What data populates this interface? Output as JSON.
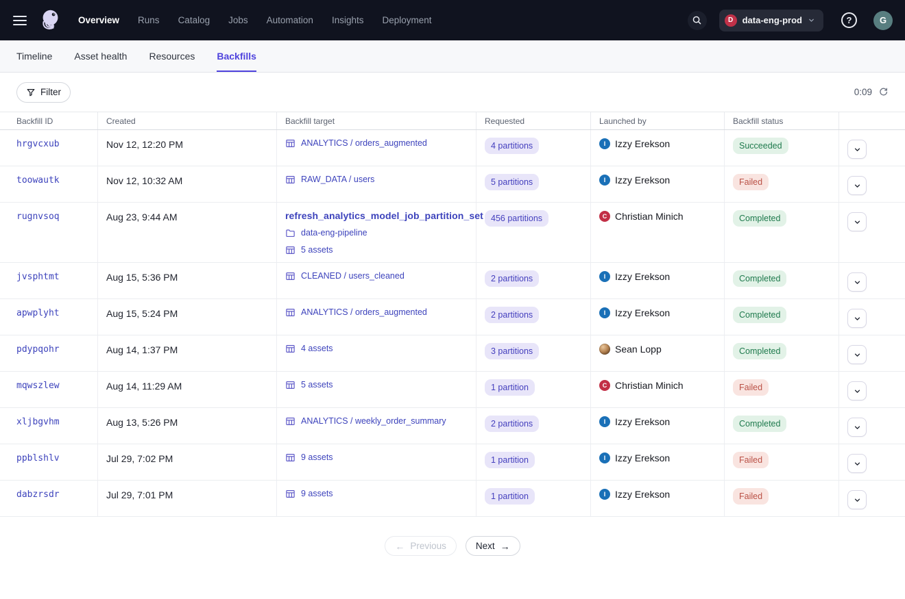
{
  "colors": {
    "accent": "#4f43dd",
    "link": "#3d43bc",
    "pillBg": "#e8e5f9",
    "pillText": "#4540be",
    "okBg": "#e2f2e7",
    "okText": "#1f7a4d",
    "failBg": "#f9e4e0",
    "failText": "#ba5146",
    "topbar": "#10131f"
  },
  "topnav": {
    "items": [
      {
        "label": "Overview",
        "active": true
      },
      {
        "label": "Runs",
        "active": false
      },
      {
        "label": "Catalog",
        "active": false
      },
      {
        "label": "Jobs",
        "active": false
      },
      {
        "label": "Automation",
        "active": false
      },
      {
        "label": "Insights",
        "active": false
      },
      {
        "label": "Deployment",
        "active": false
      }
    ],
    "deployment": {
      "label": "data-eng-prod",
      "letter": "D"
    },
    "help_label": "?",
    "user_initial": "G"
  },
  "tabs": [
    {
      "label": "Timeline",
      "active": false
    },
    {
      "label": "Asset health",
      "active": false
    },
    {
      "label": "Resources",
      "active": false
    },
    {
      "label": "Backfills",
      "active": true
    }
  ],
  "toolbar": {
    "filter_label": "Filter",
    "timer": "0:09"
  },
  "table": {
    "columns": [
      "Backfill ID",
      "Created",
      "Backfill target",
      "Requested",
      "Launched by",
      "Backfill status",
      ""
    ],
    "rows": [
      {
        "id": "hrgvcxub",
        "created": "Nov 12, 12:20 PM",
        "target": [
          {
            "icon": "table",
            "text": "ANALYTICS / orders_augmented",
            "bold": false
          }
        ],
        "requested": "4 partitions",
        "launched_by": {
          "name": "Izzy Erekson",
          "avatar": "letter",
          "letter": "I",
          "color": "#1a70b7"
        },
        "status": {
          "label": "Succeeded",
          "kind": "success"
        }
      },
      {
        "id": "toowautk",
        "created": "Nov 12, 10:32 AM",
        "target": [
          {
            "icon": "table",
            "text": "RAW_DATA / users",
            "bold": false
          }
        ],
        "requested": "5 partitions",
        "launched_by": {
          "name": "Izzy Erekson",
          "avatar": "letter",
          "letter": "I",
          "color": "#1a70b7"
        },
        "status": {
          "label": "Failed",
          "kind": "failure"
        }
      },
      {
        "id": "rugnvsoq",
        "created": "Aug 23, 9:44 AM",
        "target": [
          {
            "icon": null,
            "text": "refresh_analytics_model_job_partition_set",
            "bold": true
          },
          {
            "icon": "folder",
            "text": "data-eng-pipeline",
            "bold": false
          },
          {
            "icon": "table",
            "text": "5 assets",
            "bold": false
          }
        ],
        "requested": "456 partitions",
        "launched_by": {
          "name": "Christian Minich",
          "avatar": "letter",
          "letter": "C",
          "color": "#c22f46"
        },
        "status": {
          "label": "Completed",
          "kind": "success"
        }
      },
      {
        "id": "jvsphtmt",
        "created": "Aug 15, 5:36 PM",
        "target": [
          {
            "icon": "table",
            "text": "CLEANED / users_cleaned",
            "bold": false
          }
        ],
        "requested": "2 partitions",
        "launched_by": {
          "name": "Izzy Erekson",
          "avatar": "letter",
          "letter": "I",
          "color": "#1a70b7"
        },
        "status": {
          "label": "Completed",
          "kind": "success"
        }
      },
      {
        "id": "apwplyht",
        "created": "Aug 15, 5:24 PM",
        "target": [
          {
            "icon": "table",
            "text": "ANALYTICS / orders_augmented",
            "bold": false
          }
        ],
        "requested": "2 partitions",
        "launched_by": {
          "name": "Izzy Erekson",
          "avatar": "letter",
          "letter": "I",
          "color": "#1a70b7"
        },
        "status": {
          "label": "Completed",
          "kind": "success"
        }
      },
      {
        "id": "pdypqohr",
        "created": "Aug 14, 1:37 PM",
        "target": [
          {
            "icon": "table",
            "text": "4 assets",
            "bold": false
          }
        ],
        "requested": "3 partitions",
        "launched_by": {
          "name": "Sean Lopp",
          "avatar": "photo",
          "letter": "",
          "color": ""
        },
        "status": {
          "label": "Completed",
          "kind": "success"
        }
      },
      {
        "id": "mqwszlew",
        "created": "Aug 14, 11:29 AM",
        "target": [
          {
            "icon": "table",
            "text": "5 assets",
            "bold": false
          }
        ],
        "requested": "1 partition",
        "launched_by": {
          "name": "Christian Minich",
          "avatar": "letter",
          "letter": "C",
          "color": "#c22f46"
        },
        "status": {
          "label": "Failed",
          "kind": "failure"
        }
      },
      {
        "id": "xljbgvhm",
        "created": "Aug 13, 5:26 PM",
        "target": [
          {
            "icon": "table",
            "text": "ANALYTICS / weekly_order_summary",
            "bold": false
          }
        ],
        "requested": "2 partitions",
        "launched_by": {
          "name": "Izzy Erekson",
          "avatar": "letter",
          "letter": "I",
          "color": "#1a70b7"
        },
        "status": {
          "label": "Completed",
          "kind": "success"
        }
      },
      {
        "id": "ppblshlv",
        "created": "Jul 29, 7:02 PM",
        "target": [
          {
            "icon": "table",
            "text": "9 assets",
            "bold": false
          }
        ],
        "requested": "1 partition",
        "launched_by": {
          "name": "Izzy Erekson",
          "avatar": "letter",
          "letter": "I",
          "color": "#1a70b7"
        },
        "status": {
          "label": "Failed",
          "kind": "failure"
        }
      },
      {
        "id": "dabzrsdr",
        "created": "Jul 29, 7:01 PM",
        "target": [
          {
            "icon": "table",
            "text": "9 assets",
            "bold": false
          }
        ],
        "requested": "1 partition",
        "launched_by": {
          "name": "Izzy Erekson",
          "avatar": "letter",
          "letter": "I",
          "color": "#1a70b7"
        },
        "status": {
          "label": "Failed",
          "kind": "failure"
        }
      }
    ]
  },
  "pagination": {
    "previous": "Previous",
    "next": "Next"
  }
}
